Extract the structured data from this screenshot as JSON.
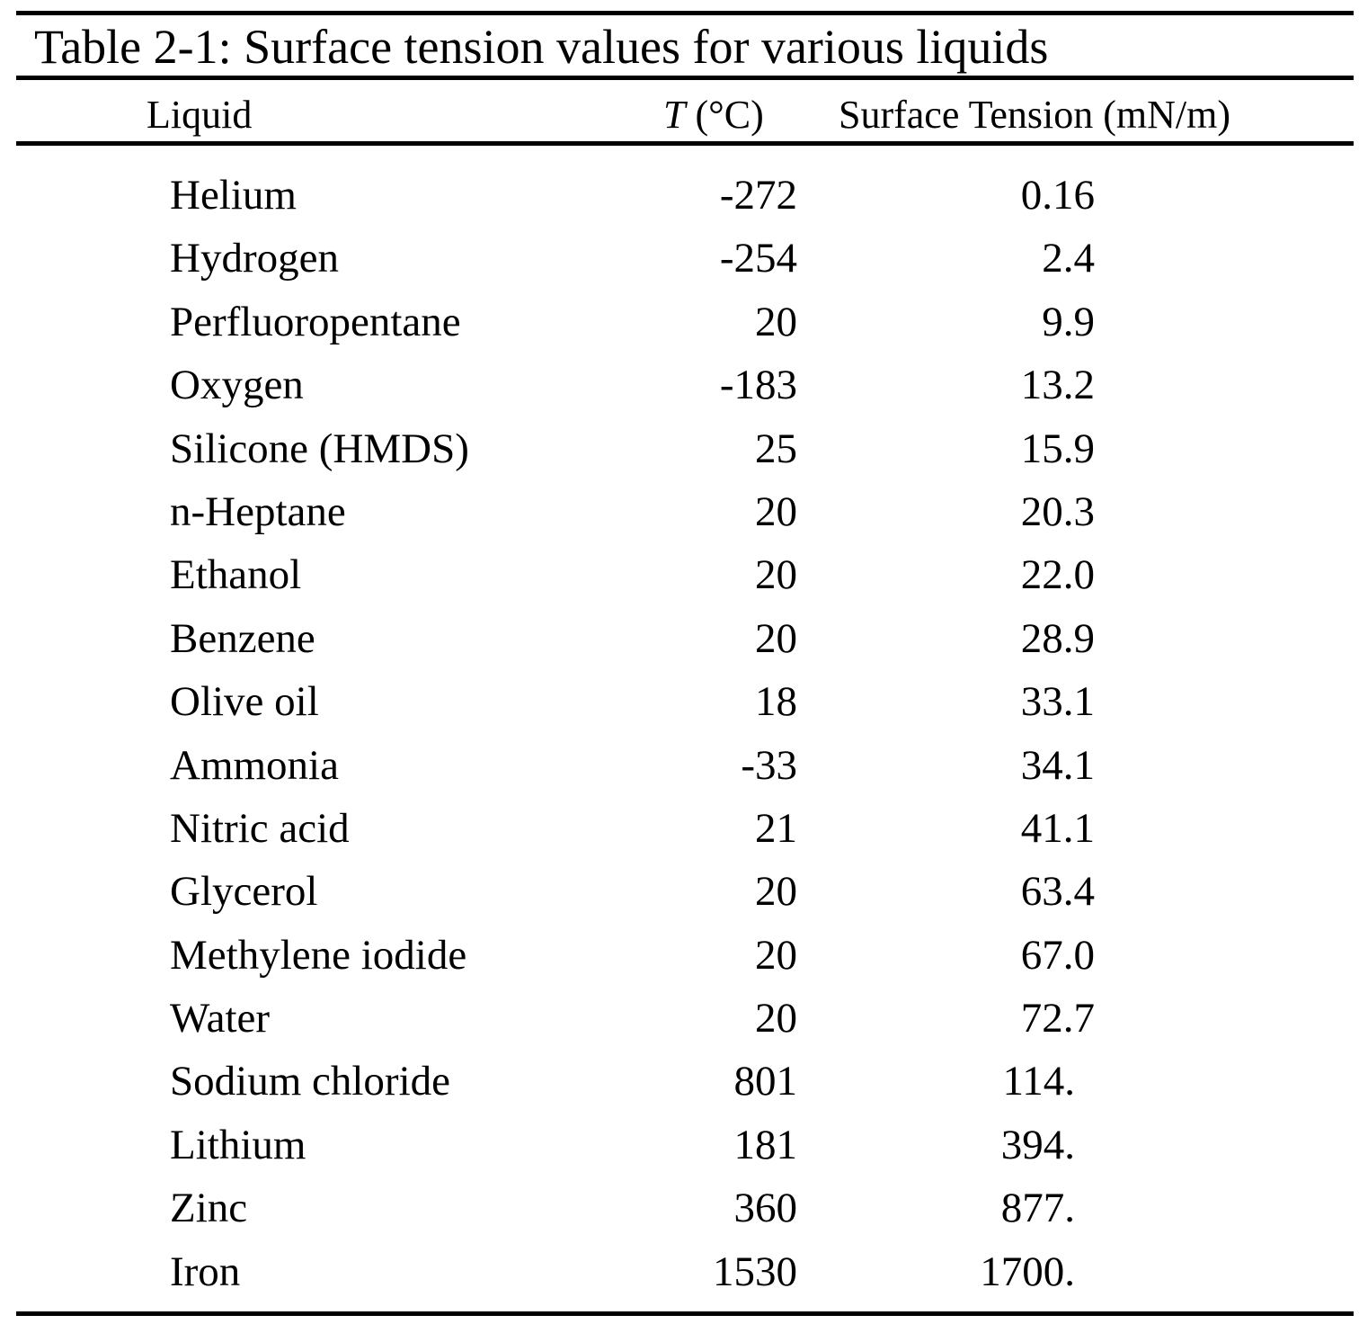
{
  "caption": "Table 2-1: Surface tension values for various liquids",
  "headers": {
    "liquid": "Liquid",
    "temp_symbol": "T",
    "temp_unit": " (°C)",
    "surface_tension": "Surface Tension (mN/m)"
  },
  "rows": [
    {
      "liquid": "Helium",
      "temp": "-272",
      "st": "0.16"
    },
    {
      "liquid": "Hydrogen",
      "temp": "-254",
      "st": "2.4"
    },
    {
      "liquid": "Perfluoropentane",
      "temp": "20",
      "st": "9.9"
    },
    {
      "liquid": "Oxygen",
      "temp": "-183",
      "st": "13.2"
    },
    {
      "liquid": "Silicone (HMDS)",
      "temp": "25",
      "st": "15.9"
    },
    {
      "liquid": "n-Heptane",
      "temp": "20",
      "st": "20.3"
    },
    {
      "liquid": "Ethanol",
      "temp": "20",
      "st": "22.0"
    },
    {
      "liquid": "Benzene",
      "temp": "20",
      "st": "28.9"
    },
    {
      "liquid": "Olive oil",
      "temp": "18",
      "st": "33.1"
    },
    {
      "liquid": "Ammonia",
      "temp": "-33",
      "st": "34.1"
    },
    {
      "liquid": "Nitric acid",
      "temp": "21",
      "st": "41.1"
    },
    {
      "liquid": "Glycerol",
      "temp": "20",
      "st": "63.4"
    },
    {
      "liquid": "Methylene iodide",
      "temp": "20",
      "st": "67.0"
    },
    {
      "liquid": "Water",
      "temp": "20",
      "st": "72.7"
    },
    {
      "liquid": "Sodium chloride",
      "temp": "801",
      "st": "114."
    },
    {
      "liquid": "Lithium",
      "temp": "181",
      "st": "394."
    },
    {
      "liquid": "Zinc",
      "temp": "360",
      "st": "877."
    },
    {
      "liquid": "Iron",
      "temp": "1530",
      "st": "1700."
    }
  ]
}
